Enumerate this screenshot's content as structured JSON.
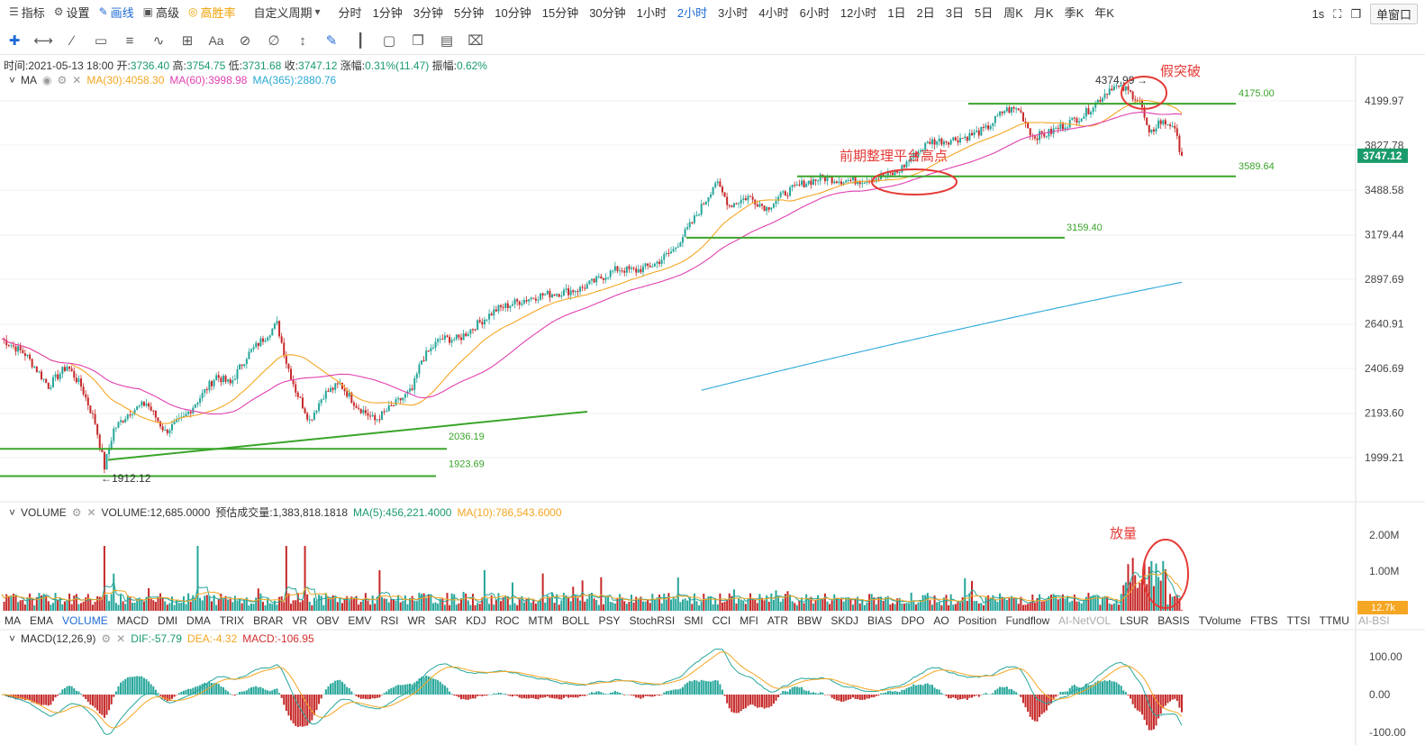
{
  "topbar": {
    "items": [
      {
        "icon": "indicator-icon",
        "label": "指标"
      },
      {
        "icon": "gear-icon",
        "label": "设置"
      },
      {
        "icon": "draw-icon",
        "label": "画线"
      },
      {
        "icon": "advanced-icon",
        "label": "高级"
      },
      {
        "icon": "winrate-icon",
        "label": "高胜率"
      }
    ],
    "custom_period": "自定义周期",
    "periods": [
      "分时",
      "1分钟",
      "3分钟",
      "5分钟",
      "10分钟",
      "15分钟",
      "30分钟",
      "1小时",
      "2小时",
      "3小时",
      "4小时",
      "6小时",
      "12小时",
      "1日",
      "2日",
      "3日",
      "5日",
      "周K",
      "月K",
      "季K",
      "年K"
    ],
    "active_period": "2小时",
    "interval": "1s",
    "window_mode": "单窗口"
  },
  "ohlc": {
    "time_label": "时间:",
    "time": "2021-05-13 18:00",
    "open_label": "开:",
    "open": "3736.40",
    "high_label": "高:",
    "high": "3754.75",
    "low_label": "低:",
    "low": "3731.68",
    "close_label": "收:",
    "close": "3747.12",
    "change_label": "涨幅:",
    "change": "0.31%(11.47)",
    "amp_label": "振幅:",
    "amp": "0.62%"
  },
  "ma": {
    "name": "MA",
    "ma30": "MA(30):4058.30",
    "ma60": "MA(60):3998.98",
    "ma365": "MA(365):2880.76"
  },
  "volume": {
    "name": "VOLUME",
    "value": "VOLUME:12,685.0000",
    "estimate": "预估成交量:1,383,818.1818",
    "ma5": "MA(5):456,221.4000",
    "ma10": "MA(10):786,543.6000",
    "axis": [
      "2.00M",
      "1.00M"
    ],
    "current": "12.7k"
  },
  "macd": {
    "name": "MACD(12,26,9)",
    "dif": "DIF:-57.79",
    "dea": "DEA:-4.32",
    "macd": "MACD:-106.95",
    "axis": [
      "100.00",
      "0.00",
      "-100.00"
    ]
  },
  "indicator_tabs": {
    "tabs": [
      "MA",
      "EMA",
      "VOLUME",
      "MACD",
      "DMI",
      "DMA",
      "TRIX",
      "BRAR",
      "VR",
      "OBV",
      "EMV",
      "RSI",
      "WR",
      "SAR",
      "KDJ",
      "ROC",
      "MTM",
      "BOLL",
      "PSY",
      "StochRSI",
      "SMI",
      "CCI",
      "MFI",
      "ATR",
      "BBW",
      "SKDJ",
      "BIAS",
      "DPO",
      "AO",
      "Position",
      "Fundflow",
      "AI-NetVOL",
      "LSUR",
      "BASIS",
      "TVolume",
      "FTBS",
      "TTSI",
      "TTMU",
      "AI-BSI"
    ],
    "active": "VOLUME",
    "dimmed": [
      "AI-NetVOL",
      "AI-BSI"
    ]
  },
  "price_axis": {
    "labels": [
      "4199.97",
      "3827.78",
      "3488.58",
      "3179.44",
      "2897.69",
      "2640.91",
      "2406.69",
      "2193.60",
      "1999.21"
    ],
    "current": "3747.12",
    "current_color": "#1a9b6c"
  },
  "annotations": {
    "high_marker": "4374.99",
    "low_marker": "1912.12",
    "fake_breakout": "假突破",
    "platform_high": "前期整理平台高点",
    "volume_surge": "放量",
    "levels": [
      "4175.00",
      "3589.64",
      "3159.40",
      "2036.19",
      "1923.69"
    ]
  },
  "colors": {
    "up": "#26a69a",
    "down": "#c62828",
    "ma30": "#f5a623",
    "ma60": "#e040b0",
    "ma365": "#29a8d8",
    "line": "#3aa52a",
    "annotation": "#e53935",
    "accent": "#1e6ad6"
  }
}
